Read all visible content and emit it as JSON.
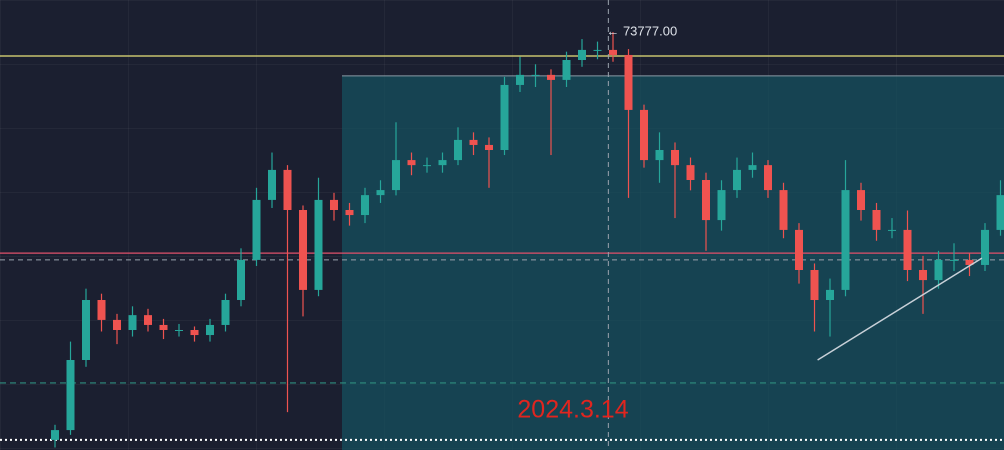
{
  "chart_data": {
    "type": "candlestick",
    "ylim": [
      57200,
      75050
    ],
    "up_color": "#26a69a",
    "down_color": "#ef5350",
    "open": [
      57600,
      57990,
      60770,
      63150,
      62360,
      61960,
      62550,
      62160,
      61960,
      61960,
      61760,
      62160,
      63150,
      64740,
      67120,
      68310,
      66720,
      63550,
      67120,
      66720,
      66520,
      67310,
      67510,
      68700,
      68500,
      68500,
      68700,
      69500,
      69300,
      69100,
      71680,
      72080,
      72080,
      71880,
      72670,
      73070,
      73070,
      72870,
      70690,
      68700,
      69100,
      68500,
      67910,
      66320,
      67510,
      68310,
      68500,
      67510,
      65930,
      64340,
      63150,
      63550,
      67510,
      66720,
      65930,
      65930,
      64340,
      63940,
      64740,
      64740,
      64540,
      65930
    ],
    "high": [
      58200,
      61500,
      63600,
      63400,
      62600,
      62900,
      62800,
      62400,
      62200,
      62100,
      62400,
      63400,
      65200,
      67600,
      69000,
      68500,
      66900,
      68000,
      67400,
      67000,
      67600,
      67900,
      70200,
      69000,
      68800,
      69000,
      70000,
      69800,
      69600,
      72000,
      72800,
      72500,
      72300,
      73000,
      73500,
      73400,
      73777,
      73100,
      70900,
      69800,
      69400,
      68800,
      68200,
      67900,
      68800,
      69000,
      68700,
      67800,
      66200,
      64600,
      64000,
      68700,
      67800,
      67000,
      66400,
      66700,
      64900,
      65100,
      65400,
      65000,
      66200,
      67900
    ],
    "low": [
      57300,
      57800,
      60500,
      61900,
      61400,
      61700,
      61900,
      61600,
      61700,
      61500,
      61500,
      61900,
      62900,
      64500,
      66800,
      58700,
      62500,
      63300,
      66300,
      66100,
      66200,
      67000,
      67300,
      68100,
      68200,
      68200,
      68500,
      68900,
      67600,
      68900,
      71400,
      71600,
      68900,
      71600,
      72400,
      72700,
      72600,
      67200,
      68400,
      67800,
      66400,
      67500,
      65100,
      65900,
      67200,
      68000,
      67200,
      65600,
      63800,
      61900,
      61700,
      63300,
      66300,
      65500,
      65600,
      63900,
      62600,
      63600,
      64300,
      64100,
      64300,
      65700
    ],
    "close": [
      57990,
      60770,
      63150,
      62360,
      61960,
      62550,
      62160,
      61960,
      61960,
      61760,
      62160,
      63150,
      64740,
      67120,
      68310,
      66720,
      63550,
      67120,
      66720,
      66520,
      67310,
      67510,
      68700,
      68500,
      68500,
      68700,
      69500,
      69300,
      69100,
      71680,
      72080,
      72080,
      71880,
      72670,
      73070,
      73070,
      72870,
      70690,
      68700,
      69100,
      68500,
      67910,
      66320,
      67510,
      68310,
      68500,
      67510,
      65930,
      64340,
      63150,
      63550,
      67510,
      66720,
      65930,
      65930,
      64340,
      63940,
      64740,
      64740,
      64540,
      65930,
      67310
    ],
    "levels": [
      {
        "price": 72830,
        "color": "#e8e27a",
        "style": "solid"
      },
      {
        "price": 65010,
        "color": "#e0506a",
        "style": "solid"
      },
      {
        "price": 59860,
        "color": "#2f8f7f",
        "style": "dashed"
      },
      {
        "price": 57600,
        "color": "#ffffff",
        "style": "dotted"
      }
    ],
    "zone": {
      "top": 72040,
      "color": "#16505e"
    },
    "trendline": {
      "x": [
        49.2,
        59.8
      ],
      "values": [
        60770,
        64810
      ],
      "color": "#c8d0d8"
    },
    "crosshair": {
      "x": 35.7,
      "price": 64740
    },
    "annotations": [
      "← 73777.00",
      "2024.3.14"
    ]
  }
}
